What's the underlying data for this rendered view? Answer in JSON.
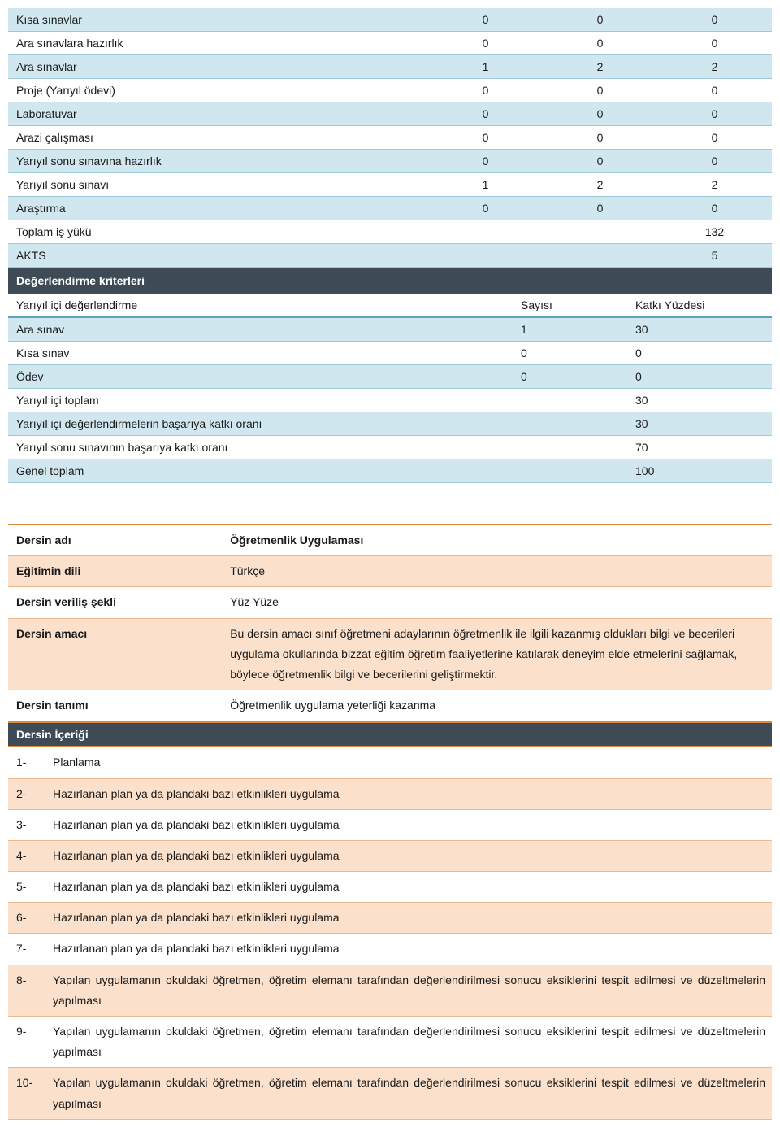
{
  "workload": {
    "rows": [
      {
        "label": "Kısa sınavlar",
        "v1": "0",
        "v2": "0",
        "v3": "0",
        "alt": true
      },
      {
        "label": "Ara sınavlara hazırlık",
        "v1": "0",
        "v2": "0",
        "v3": "0",
        "alt": false
      },
      {
        "label": "Ara sınavlar",
        "v1": "1",
        "v2": "2",
        "v3": "2",
        "alt": true
      },
      {
        "label": "Proje (Yarıyıl ödevi)",
        "v1": "0",
        "v2": "0",
        "v3": "0",
        "alt": false
      },
      {
        "label": "Laboratuvar",
        "v1": "0",
        "v2": "0",
        "v3": "0",
        "alt": true
      },
      {
        "label": "Arazi çalışması",
        "v1": "0",
        "v2": "0",
        "v3": "0",
        "alt": false
      },
      {
        "label": "Yarıyıl sonu sınavına hazırlık",
        "v1": "0",
        "v2": "0",
        "v3": "0",
        "alt": true
      },
      {
        "label": "Yarıyıl sonu sınavı",
        "v1": "1",
        "v2": "2",
        "v3": "2",
        "alt": false
      },
      {
        "label": "Araştırma",
        "v1": "0",
        "v2": "0",
        "v3": "0",
        "alt": true
      }
    ],
    "total_label": "Toplam iş yükü",
    "total_value": "132",
    "akts_label": "AKTS",
    "akts_value": "5"
  },
  "eval": {
    "section_title": "Değerlendirme kriterleri",
    "head": {
      "c0": "Yarıyıl içi değerlendirme",
      "c1": "Sayısı",
      "c2": "Katkı Yüzdesi"
    },
    "rows": [
      {
        "label": "Ara sınav",
        "v1": "1",
        "v2": "30",
        "alt": true
      },
      {
        "label": "Kısa sınav",
        "v1": "0",
        "v2": "0",
        "alt": false
      },
      {
        "label": "Ödev",
        "v1": "0",
        "v2": "0",
        "alt": true
      },
      {
        "label": "Yarıyıl içi toplam",
        "v1": "",
        "v2": "30",
        "alt": false
      },
      {
        "label": "Yarıyıl içi değerlendirmelerin başarıya katkı oranı",
        "v1": "",
        "v2": "30",
        "alt": true
      },
      {
        "label": "Yarıyıl sonu sınavının başarıya katkı oranı",
        "v1": "",
        "v2": "70",
        "alt": false
      },
      {
        "label": "Genel toplam",
        "v1": "",
        "v2": "100",
        "alt": true
      }
    ]
  },
  "course": {
    "rows": [
      {
        "label": "Dersin adı",
        "value": "Öğretmenlik Uygulaması",
        "alt": false,
        "bold": true
      },
      {
        "label": "Eğitimin dili",
        "value": "Türkçe",
        "alt": true,
        "bold": false
      },
      {
        "label": "Dersin veriliş şekli",
        "value": "Yüz Yüze",
        "alt": false,
        "bold": false
      },
      {
        "label": "Dersin amacı",
        "value": "Bu dersin amacı sınıf öğretmeni adaylarının öğretmenlik ile ilgili kazanmış oldukları bilgi ve becerileri uygulama okullarında bizzat eğitim öğretim faaliyetlerine katılarak deneyim elde etmelerini sağlamak, böylece öğretmenlik bilgi ve becerilerini geliştirmektir.",
        "alt": true,
        "bold": false
      },
      {
        "label": "Dersin tanımı",
        "value": "Öğretmenlik uygulama yeterliği kazanma",
        "alt": false,
        "bold": false
      }
    ]
  },
  "content": {
    "section_title": "Dersin İçeriği",
    "items": [
      {
        "n": "1-",
        "t": "Planlama",
        "alt": false
      },
      {
        "n": "2-",
        "t": "Hazırlanan plan ya da plandaki bazı etkinlikleri uygulama",
        "alt": true
      },
      {
        "n": "3-",
        "t": "Hazırlanan plan ya da plandaki bazı etkinlikleri uygulama",
        "alt": false
      },
      {
        "n": "4-",
        "t": "Hazırlanan plan ya da plandaki bazı etkinlikleri uygulama",
        "alt": true
      },
      {
        "n": "5-",
        "t": "Hazırlanan plan ya da plandaki bazı etkinlikleri uygulama",
        "alt": false
      },
      {
        "n": "6-",
        "t": "Hazırlanan plan ya da plandaki bazı etkinlikleri uygulama",
        "alt": true
      },
      {
        "n": "7-",
        "t": "Hazırlanan plan ya da plandaki bazı etkinlikleri uygulama",
        "alt": false
      },
      {
        "n": "8-",
        "t": "Yapılan uygulamanın okuldaki öğretmen, öğretim elemanı tarafından değerlendirilmesi sonucu eksiklerini tespit edilmesi ve düzeltmelerin yapılması",
        "alt": true
      },
      {
        "n": "9-",
        "t": "Yapılan uygulamanın okuldaki öğretmen, öğretim elemanı tarafından değerlendirilmesi sonucu eksiklerini tespit edilmesi ve düzeltmelerin yapılması",
        "alt": false
      },
      {
        "n": "10-",
        "t": "Yapılan uygulamanın okuldaki öğretmen, öğretim elemanı tarafından değerlendirilmesi sonucu eksiklerini tespit edilmesi ve düzeltmelerin yapılması",
        "alt": true
      }
    ]
  }
}
